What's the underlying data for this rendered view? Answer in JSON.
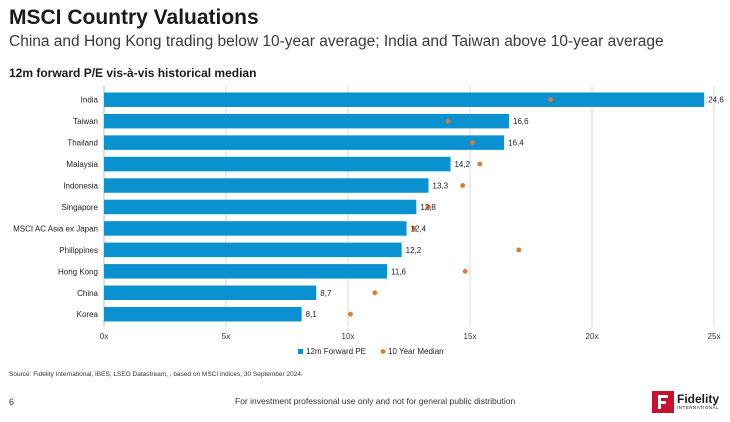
{
  "header": {
    "title": "MSCI Country Valuations",
    "subtitle": "China and Hong Kong trading below 10-year average; India and Taiwan above 10-year average"
  },
  "chart_data": {
    "type": "bar",
    "orientation": "horizontal",
    "title": "12m forward P/E vis-à-vis historical median",
    "categories": [
      "India",
      "Taiwan",
      "Thailand",
      "Malaysia",
      "Indonesia",
      "Singapore",
      "MSCI AC Asia ex Japan",
      "Philippines",
      "Hong Kong",
      "China",
      "Korea"
    ],
    "series": [
      {
        "name": "12m Forward PE",
        "kind": "bar",
        "color": "#0a92d0",
        "values": [
          24.6,
          16.6,
          16.4,
          14.2,
          13.3,
          12.8,
          12.4,
          12.2,
          11.6,
          8.7,
          8.1
        ],
        "labels": [
          "24,6",
          "16,6",
          "16,4",
          "14,2",
          "13,3",
          "12,8",
          "12,4",
          "12,2",
          "11,6",
          "8,7",
          "8,1"
        ]
      },
      {
        "name": "10 Year Median",
        "kind": "dot",
        "color": "#e8772e",
        "values": [
          18.3,
          14.1,
          15.1,
          15.4,
          14.7,
          13.3,
          12.7,
          17.0,
          14.8,
          11.1,
          10.1
        ]
      }
    ],
    "xlim": [
      0,
      25
    ],
    "xticks": [
      0,
      5,
      10,
      15,
      20,
      25
    ],
    "xtick_labels": [
      "0x",
      "5x",
      "10x",
      "15x",
      "20x",
      "25x"
    ],
    "grid": true,
    "legend_position": "bottom"
  },
  "footer": {
    "source": "Source: Fidelity International, IBES, LSEG Datastream, , based on MSCI indices, 30 September 2024.",
    "page_number": "6",
    "note": "For investment professional use only and not for general public distribution",
    "logo_name": "Fidelity",
    "logo_sub": "INTERNATIONAL"
  }
}
